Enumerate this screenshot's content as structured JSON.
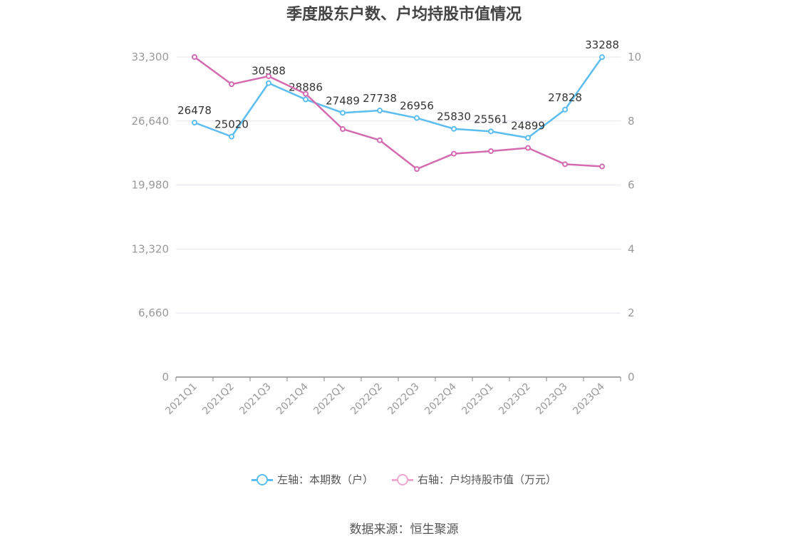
{
  "title": "季度股东户数、户均持股市值情况",
  "source": "数据来源：恒生聚源",
  "colors": {
    "left_series": "#5bbdf0",
    "right_series": "#d46bb0",
    "grid": "#e3e6f0",
    "axis": "#888888",
    "tick_text": "#999999",
    "label_text": "#333333"
  },
  "legend": [
    {
      "label": "左轴：本期数（户）",
      "color": "#5bbdf0"
    },
    {
      "label": "右轴：户均持股市值（万元）",
      "color": "#f0a8d0"
    }
  ],
  "chart_data": {
    "type": "line",
    "title": "季度股东户数、户均持股市值情况",
    "categories": [
      "2021Q1",
      "2021Q2",
      "2021Q3",
      "2021Q4",
      "2022Q1",
      "2022Q2",
      "2022Q3",
      "2022Q4",
      "2023Q1",
      "2023Q2",
      "2023Q3",
      "2023Q4"
    ],
    "left_axis": {
      "ticks": [
        "0",
        "6,660",
        "13,320",
        "19,980",
        "26,640",
        "33,300"
      ],
      "ylim": [
        0,
        33300
      ]
    },
    "right_axis": {
      "ticks": [
        "0",
        "2",
        "4",
        "6",
        "8",
        "10"
      ],
      "ylim": [
        0,
        10
      ]
    },
    "grid": true,
    "legend_position": "bottom",
    "series": [
      {
        "name": "左轴：本期数（户）",
        "axis": "left",
        "values": [
          26478,
          25020,
          30588,
          28886,
          27489,
          27738,
          26956,
          25830,
          25561,
          24899,
          27828,
          33288
        ],
        "labels": [
          "26478",
          "25020",
          "30588",
          "28886",
          "27489",
          "27738",
          "26956",
          "25830",
          "25561",
          "24899",
          "27828",
          "33288"
        ]
      },
      {
        "name": "右轴：户均持股市值（万元）",
        "axis": "right",
        "values": [
          10.0,
          9.15,
          9.4,
          8.85,
          7.75,
          7.4,
          6.5,
          6.98,
          7.06,
          7.16,
          6.65,
          6.58
        ]
      }
    ]
  }
}
